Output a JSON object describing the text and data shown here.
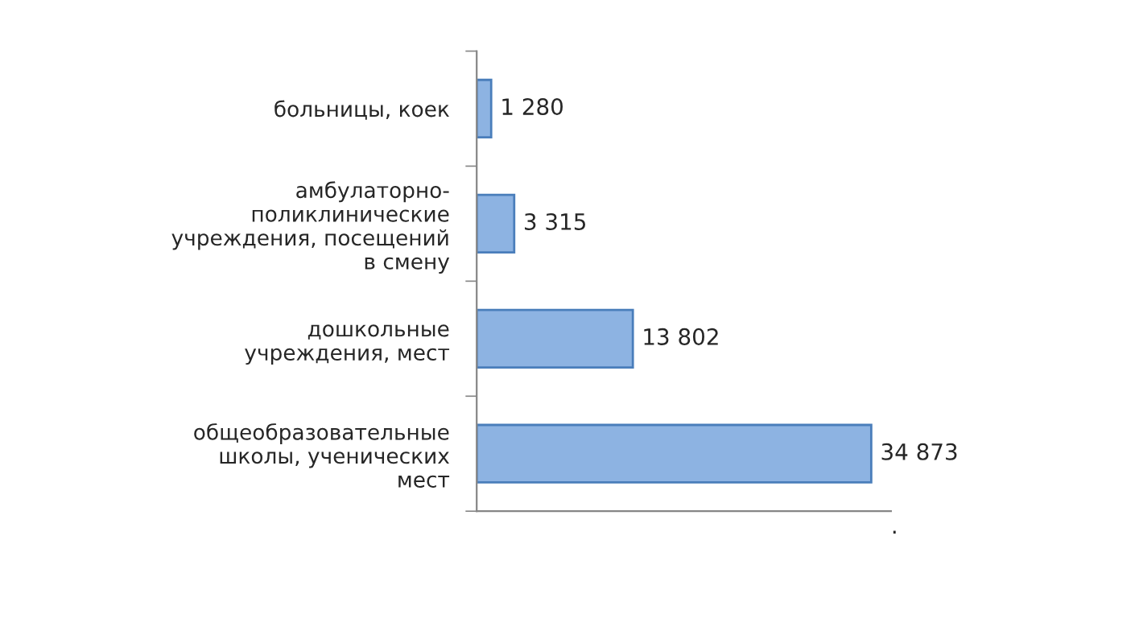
{
  "chart_data": {
    "type": "bar",
    "orientation": "horizontal",
    "categories": [
      "больницы, коек",
      "амбулаторно-\nполиклинические\nучреждения, посещений\nв смену",
      "дошкольные\nучреждения, мест",
      "общеобразовательные\nшколы, ученических\nмест"
    ],
    "values": [
      1280,
      3315,
      13802,
      34873
    ],
    "value_labels": [
      "1 280",
      "3 315",
      "13 802",
      "34 873"
    ],
    "color": "#8db3e2",
    "annotations": [
      "."
    ],
    "grid": false,
    "legend": false
  }
}
